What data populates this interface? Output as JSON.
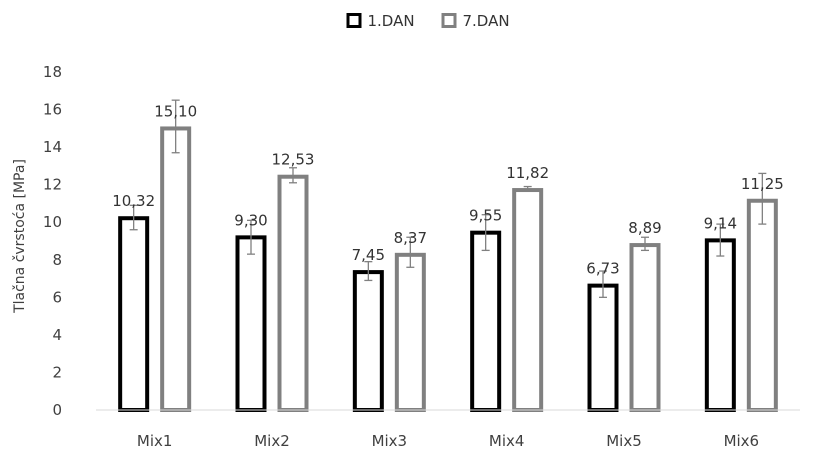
{
  "chart_data": {
    "type": "bar",
    "title": "",
    "xlabel": "",
    "ylabel": "Tlačna čvrstoća [MPa]",
    "ylim": [
      0,
      18
    ],
    "yticks": [
      0,
      2,
      4,
      6,
      8,
      10,
      12,
      14,
      16,
      18
    ],
    "categories": [
      "Mix1",
      "Mix2",
      "Mix3",
      "Mix4",
      "Mix5",
      "Mix6"
    ],
    "series": [
      {
        "name": "1.DAN",
        "color": "#000000",
        "values": [
          10.32,
          9.3,
          7.45,
          9.55,
          6.73,
          9.14
        ],
        "labels": [
          "10,32",
          "9,30",
          "7,45",
          "9,55",
          "6,73",
          "9,14"
        ],
        "error_low": [
          9.6,
          8.3,
          6.9,
          8.5,
          6.0,
          8.2
        ],
        "error_high": [
          10.9,
          10.1,
          7.9,
          10.4,
          7.4,
          9.9
        ]
      },
      {
        "name": "7.DAN",
        "color": "#808080",
        "values": [
          15.1,
          12.53,
          8.37,
          11.82,
          8.89,
          11.25
        ],
        "labels": [
          "15,10",
          "12,53",
          "8,37",
          "11,82",
          "8,89",
          "11,25"
        ],
        "error_low": [
          13.7,
          12.1,
          7.6,
          11.7,
          8.5,
          9.9
        ],
        "error_high": [
          16.5,
          12.9,
          9.2,
          11.9,
          9.2,
          12.6
        ]
      }
    ],
    "grid": false,
    "legend_position": "top"
  }
}
